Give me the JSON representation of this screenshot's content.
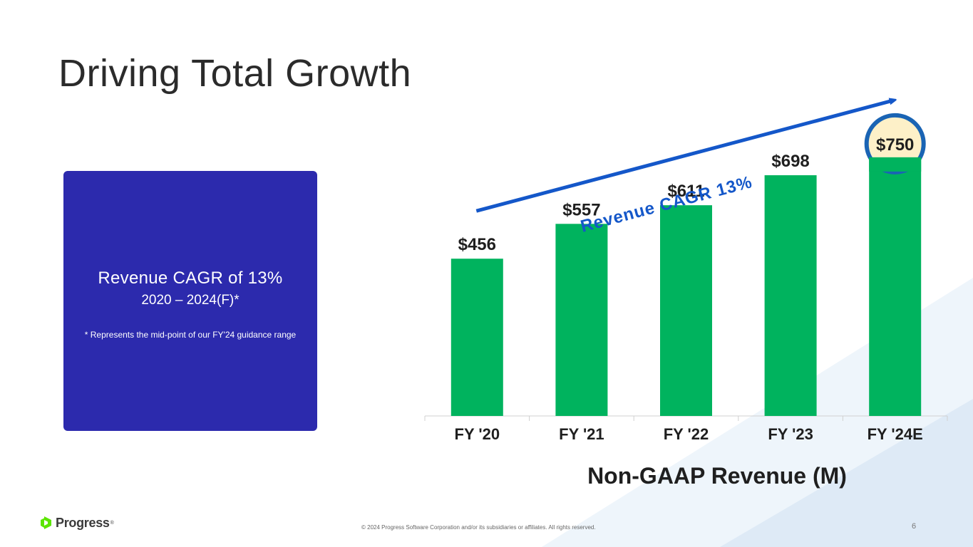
{
  "slide": {
    "title": "Driving Total Growth",
    "page_number": "6",
    "copyright": "© 2024 Progress Software Corporation and/or its subsidiaries or affiliates. All rights reserved."
  },
  "callout": {
    "headline": "Revenue CAGR of 13%",
    "subtitle": "2020 – 2024(F)*",
    "footnote": "* Represents the mid-point of our FY'24 guidance range"
  },
  "logo": {
    "text": "Progress",
    "registered": "®"
  },
  "chart_data": {
    "type": "bar",
    "title": "",
    "xlabel": "Non-GAAP Revenue (M)",
    "ylabel": "",
    "categories": [
      "FY '20",
      "FY '21",
      "FY '22",
      "FY '23",
      "FY '24E"
    ],
    "values": [
      456,
      557,
      611,
      698,
      750
    ],
    "data_labels": [
      "$456",
      "$557",
      "$611",
      "$698",
      "$750"
    ],
    "highlighted_index": 4,
    "annotation": "Revenue CAGR 13%",
    "grid": false,
    "legend": "none",
    "colors": {
      "bar": "#00b35e",
      "arrow": "#1457c9",
      "highlight_ring": "#1a64b4",
      "highlight_fill": "#fdf0c8",
      "callout_bg": "#2c2aad",
      "text_dark": "#1f1f1f"
    }
  }
}
